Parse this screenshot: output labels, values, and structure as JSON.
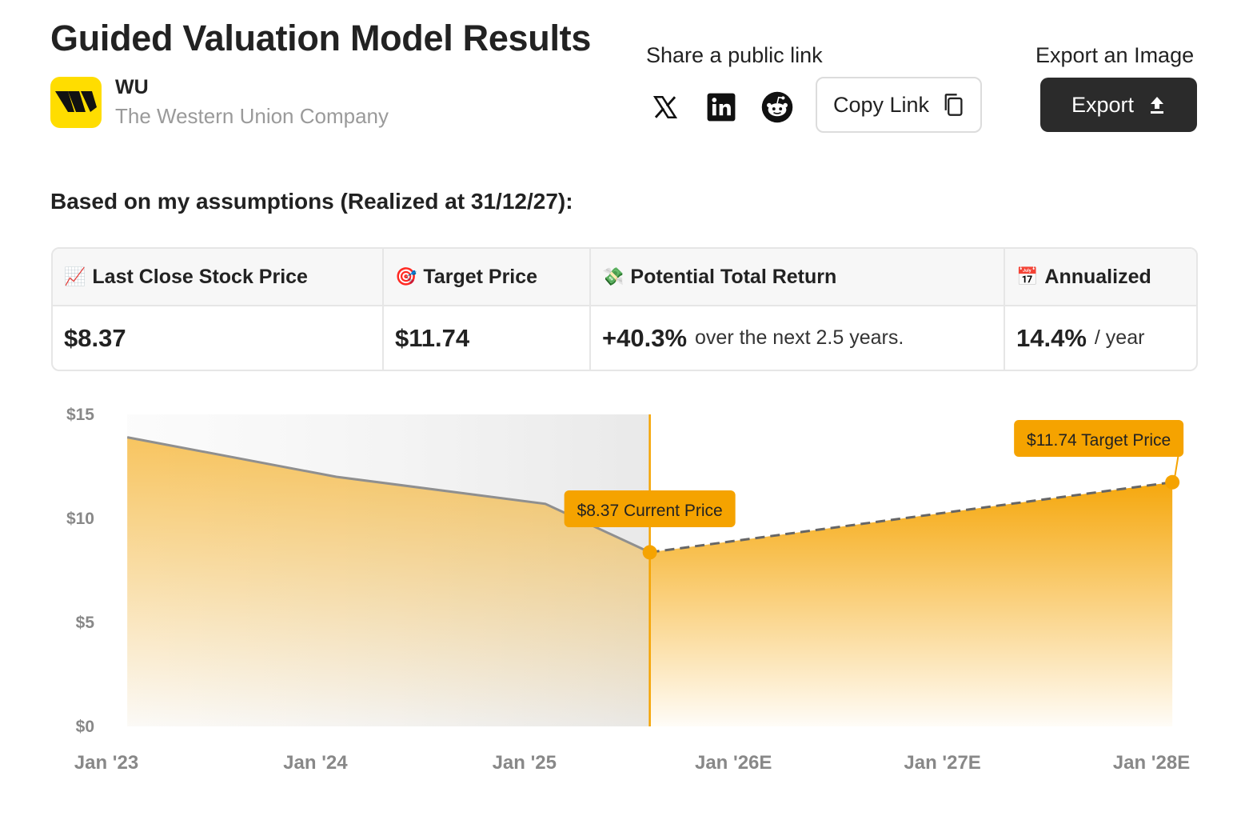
{
  "header": {
    "title": "Guided Valuation Model Results",
    "ticker": "WU",
    "company_name": "The Western Union Company"
  },
  "share": {
    "label": "Share a public link",
    "icons": [
      "x-icon",
      "linkedin-icon",
      "reddit-icon"
    ],
    "copy_link_label": "Copy Link"
  },
  "export": {
    "label": "Export an Image",
    "button_label": "Export"
  },
  "assumptions_text": "Based on my assumptions (Realized at 31/12/27):",
  "results": {
    "headers": [
      {
        "emoji": "📈",
        "label": "Last Close Stock Price"
      },
      {
        "emoji": "🎯",
        "label": "Target Price"
      },
      {
        "emoji": "💸",
        "label": "Potential Total Return"
      },
      {
        "emoji": "📅",
        "label": "Annualized"
      }
    ],
    "values": {
      "last_close": "$8.37",
      "target": "$11.74",
      "total_return": "+40.3%",
      "total_return_note": "over the next 2.5 years.",
      "annualized": "14.4%",
      "annualized_note": "/ year"
    }
  },
  "colors": {
    "accent": "#F5A300",
    "dark_button": "#2b2b2b",
    "history_line": "#8f8f8f",
    "forecast_line": "#666666"
  },
  "chart_data": {
    "type": "area",
    "y_ticks": [
      "$0",
      "$5",
      "$10",
      "$15"
    ],
    "y_tick_values": [
      0,
      5,
      10,
      15
    ],
    "x_ticks": [
      "Jan '23",
      "Jan '24",
      "Jan '25",
      "Jan '26E",
      "Jan '27E",
      "Jan '28E"
    ],
    "x_tick_values": [
      2023.0,
      2024.0,
      2025.0,
      2026.0,
      2027.0,
      2028.0
    ],
    "ylim": [
      0,
      15
    ],
    "xlim": [
      2023.0,
      2028.0
    ],
    "series": [
      {
        "kind": "historical",
        "points": [
          {
            "x": 2023.1,
            "y": 13.9
          },
          {
            "x": 2024.1,
            "y": 12.0
          },
          {
            "x": 2025.1,
            "y": 10.7
          },
          {
            "x": 2025.6,
            "y": 8.37
          }
        ]
      },
      {
        "kind": "forecast",
        "points": [
          {
            "x": 2025.6,
            "y": 8.37
          },
          {
            "x": 2028.1,
            "y": 11.74
          }
        ]
      }
    ],
    "current_marker": {
      "x": 2025.6,
      "y": 8.37,
      "label": "$8.37 Current Price"
    },
    "target_marker": {
      "x": 2028.1,
      "y": 11.74,
      "label": "$11.74 Target Price"
    }
  }
}
